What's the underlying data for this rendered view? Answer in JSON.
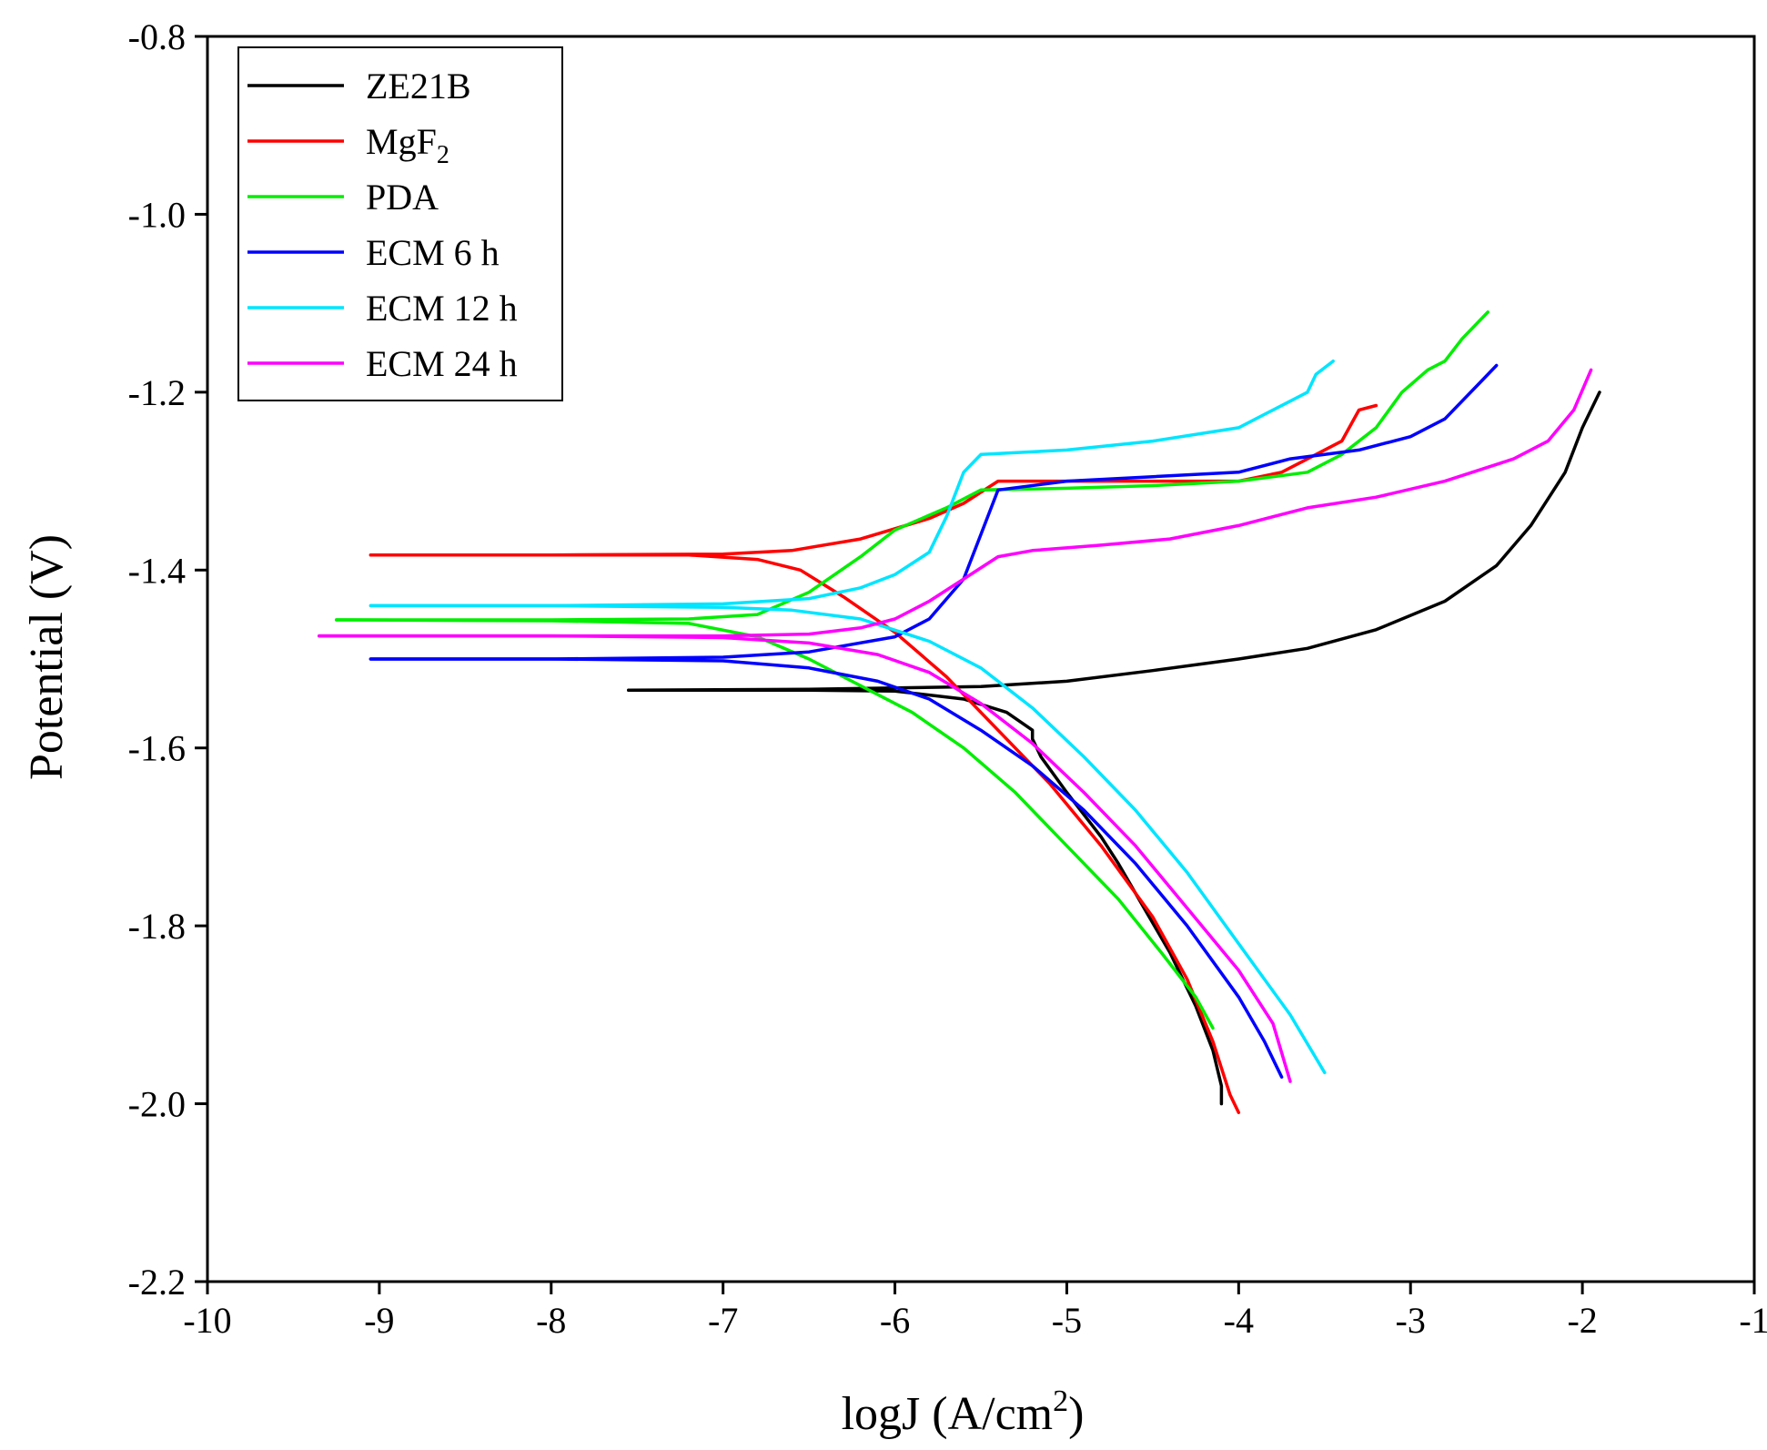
{
  "chart_data": {
    "type": "line",
    "title": "",
    "xlabel": "logJ (A/cm",
    "xlabel_sup": "2",
    "xlabel_tail": ")",
    "ylabel": "Potential (V)",
    "xlim": [
      -10,
      -1
    ],
    "ylim": [
      -2.2,
      -0.8
    ],
    "xticks": [
      -10,
      -9,
      -8,
      -7,
      -6,
      -5,
      -4,
      -3,
      -2,
      -1
    ],
    "xtick_labels": [
      "-10",
      "-9",
      "-8",
      "-7",
      "-6",
      "-5",
      "-4",
      "-3",
      "-2",
      "-1"
    ],
    "yticks": [
      -0.8,
      -1.0,
      -1.2,
      -1.4,
      -1.6,
      -1.8,
      -2.0,
      -2.2
    ],
    "ytick_labels": [
      "-0.8",
      "-1.0",
      "-1.2",
      "-1.4",
      "-1.6",
      "-1.8",
      "-2.0",
      "-2.2"
    ],
    "grid": false,
    "legend_position": "top-left",
    "series": [
      {
        "name": "ZE21B",
        "name_sub": "",
        "color": "#000000",
        "anodic": [
          [
            -7.55,
            -1.535
          ],
          [
            -6.5,
            -1.534
          ],
          [
            -5.5,
            -1.531
          ],
          [
            -5.0,
            -1.525
          ],
          [
            -4.5,
            -1.513
          ],
          [
            -4.0,
            -1.5
          ],
          [
            -3.6,
            -1.488
          ],
          [
            -3.2,
            -1.467
          ],
          [
            -2.8,
            -1.435
          ],
          [
            -2.5,
            -1.395
          ],
          [
            -2.3,
            -1.35
          ],
          [
            -2.1,
            -1.29
          ],
          [
            -2.0,
            -1.24
          ],
          [
            -1.9,
            -1.2
          ]
        ],
        "cathodic": [
          [
            -7.55,
            -1.535
          ],
          [
            -6.5,
            -1.535
          ],
          [
            -6.0,
            -1.536
          ],
          [
            -5.6,
            -1.545
          ],
          [
            -5.35,
            -1.56
          ],
          [
            -5.2,
            -1.58
          ],
          [
            -5.2,
            -1.59
          ],
          [
            -5.15,
            -1.61
          ],
          [
            -5.0,
            -1.65
          ],
          [
            -4.8,
            -1.7
          ],
          [
            -4.7,
            -1.73
          ],
          [
            -4.55,
            -1.78
          ],
          [
            -4.4,
            -1.83
          ],
          [
            -4.25,
            -1.89
          ],
          [
            -4.15,
            -1.94
          ],
          [
            -4.1,
            -1.98
          ],
          [
            -4.1,
            -2.0
          ]
        ]
      },
      {
        "name": "MgF",
        "name_sub": "2",
        "color": "#ff0000",
        "anodic": [
          [
            -9.05,
            -1.383
          ],
          [
            -8.0,
            -1.383
          ],
          [
            -7.0,
            -1.382
          ],
          [
            -6.6,
            -1.378
          ],
          [
            -6.2,
            -1.365
          ],
          [
            -5.8,
            -1.342
          ],
          [
            -5.6,
            -1.325
          ],
          [
            -5.4,
            -1.3
          ],
          [
            -5.0,
            -1.3
          ],
          [
            -4.5,
            -1.3
          ],
          [
            -4.0,
            -1.3
          ],
          [
            -3.75,
            -1.29
          ],
          [
            -3.55,
            -1.27
          ],
          [
            -3.4,
            -1.255
          ],
          [
            -3.3,
            -1.22
          ],
          [
            -3.2,
            -1.215
          ]
        ],
        "cathodic": [
          [
            -9.05,
            -1.383
          ],
          [
            -8.0,
            -1.383
          ],
          [
            -7.2,
            -1.383
          ],
          [
            -6.8,
            -1.388
          ],
          [
            -6.55,
            -1.4
          ],
          [
            -6.3,
            -1.43
          ],
          [
            -6.0,
            -1.47
          ],
          [
            -5.7,
            -1.52
          ],
          [
            -5.4,
            -1.58
          ],
          [
            -5.1,
            -1.64
          ],
          [
            -4.8,
            -1.71
          ],
          [
            -4.5,
            -1.79
          ],
          [
            -4.3,
            -1.86
          ],
          [
            -4.15,
            -1.93
          ],
          [
            -4.05,
            -1.99
          ],
          [
            -4.0,
            -2.01
          ]
        ]
      },
      {
        "name": "PDA",
        "name_sub": "",
        "color": "#00ee00",
        "anodic": [
          [
            -9.25,
            -1.456
          ],
          [
            -8.0,
            -1.456
          ],
          [
            -7.2,
            -1.455
          ],
          [
            -6.8,
            -1.45
          ],
          [
            -6.5,
            -1.425
          ],
          [
            -6.2,
            -1.385
          ],
          [
            -6.0,
            -1.355
          ],
          [
            -5.7,
            -1.33
          ],
          [
            -5.5,
            -1.31
          ],
          [
            -5.0,
            -1.308
          ],
          [
            -4.5,
            -1.305
          ],
          [
            -4.0,
            -1.3
          ],
          [
            -3.6,
            -1.29
          ],
          [
            -3.4,
            -1.27
          ],
          [
            -3.2,
            -1.24
          ],
          [
            -3.05,
            -1.2
          ],
          [
            -2.9,
            -1.175
          ],
          [
            -2.8,
            -1.165
          ],
          [
            -2.7,
            -1.14
          ],
          [
            -2.55,
            -1.11
          ]
        ],
        "cathodic": [
          [
            -9.25,
            -1.456
          ],
          [
            -8.0,
            -1.457
          ],
          [
            -7.2,
            -1.46
          ],
          [
            -6.8,
            -1.475
          ],
          [
            -6.5,
            -1.5
          ],
          [
            -6.2,
            -1.53
          ],
          [
            -5.9,
            -1.56
          ],
          [
            -5.6,
            -1.6
          ],
          [
            -5.3,
            -1.65
          ],
          [
            -5.0,
            -1.71
          ],
          [
            -4.7,
            -1.77
          ],
          [
            -4.45,
            -1.83
          ],
          [
            -4.25,
            -1.88
          ],
          [
            -4.15,
            -1.915
          ]
        ]
      },
      {
        "name": "ECM 6 h",
        "name_sub": "",
        "color": "#0000ff",
        "anodic": [
          [
            -9.05,
            -1.5
          ],
          [
            -8.0,
            -1.5
          ],
          [
            -7.0,
            -1.498
          ],
          [
            -6.5,
            -1.492
          ],
          [
            -6.0,
            -1.475
          ],
          [
            -5.8,
            -1.455
          ],
          [
            -5.6,
            -1.41
          ],
          [
            -5.5,
            -1.36
          ],
          [
            -5.4,
            -1.31
          ],
          [
            -5.0,
            -1.3
          ],
          [
            -4.5,
            -1.295
          ],
          [
            -4.0,
            -1.29
          ],
          [
            -3.7,
            -1.275
          ],
          [
            -3.3,
            -1.265
          ],
          [
            -3.0,
            -1.25
          ],
          [
            -2.8,
            -1.23
          ],
          [
            -2.6,
            -1.19
          ],
          [
            -2.5,
            -1.17
          ]
        ],
        "cathodic": [
          [
            -9.05,
            -1.5
          ],
          [
            -8.0,
            -1.5
          ],
          [
            -7.0,
            -1.502
          ],
          [
            -6.5,
            -1.51
          ],
          [
            -6.1,
            -1.525
          ],
          [
            -5.8,
            -1.545
          ],
          [
            -5.5,
            -1.58
          ],
          [
            -5.2,
            -1.62
          ],
          [
            -4.9,
            -1.67
          ],
          [
            -4.6,
            -1.73
          ],
          [
            -4.3,
            -1.8
          ],
          [
            -4.0,
            -1.88
          ],
          [
            -3.85,
            -1.93
          ],
          [
            -3.75,
            -1.97
          ]
        ]
      },
      {
        "name": "ECM 12 h",
        "name_sub": "",
        "color": "#00e5ff",
        "anodic": [
          [
            -9.05,
            -1.44
          ],
          [
            -8.0,
            -1.44
          ],
          [
            -7.0,
            -1.438
          ],
          [
            -6.5,
            -1.432
          ],
          [
            -6.2,
            -1.42
          ],
          [
            -6.0,
            -1.405
          ],
          [
            -5.8,
            -1.38
          ],
          [
            -5.7,
            -1.34
          ],
          [
            -5.6,
            -1.29
          ],
          [
            -5.5,
            -1.27
          ],
          [
            -5.0,
            -1.265
          ],
          [
            -4.5,
            -1.255
          ],
          [
            -4.0,
            -1.24
          ],
          [
            -3.8,
            -1.22
          ],
          [
            -3.6,
            -1.2
          ],
          [
            -3.55,
            -1.18
          ],
          [
            -3.45,
            -1.165
          ]
        ],
        "cathodic": [
          [
            -9.05,
            -1.44
          ],
          [
            -8.0,
            -1.44
          ],
          [
            -7.0,
            -1.442
          ],
          [
            -6.6,
            -1.445
          ],
          [
            -6.2,
            -1.455
          ],
          [
            -5.8,
            -1.48
          ],
          [
            -5.5,
            -1.51
          ],
          [
            -5.2,
            -1.555
          ],
          [
            -4.9,
            -1.61
          ],
          [
            -4.6,
            -1.67
          ],
          [
            -4.3,
            -1.74
          ],
          [
            -4.0,
            -1.82
          ],
          [
            -3.7,
            -1.9
          ],
          [
            -3.5,
            -1.965
          ]
        ]
      },
      {
        "name": "ECM 24 h",
        "name_sub": "",
        "color": "#ff00ff",
        "anodic": [
          [
            -9.35,
            -1.474
          ],
          [
            -8.0,
            -1.474
          ],
          [
            -7.0,
            -1.474
          ],
          [
            -6.5,
            -1.472
          ],
          [
            -6.2,
            -1.465
          ],
          [
            -6.0,
            -1.455
          ],
          [
            -5.8,
            -1.435
          ],
          [
            -5.6,
            -1.41
          ],
          [
            -5.4,
            -1.385
          ],
          [
            -5.2,
            -1.378
          ],
          [
            -4.8,
            -1.372
          ],
          [
            -4.4,
            -1.365
          ],
          [
            -4.0,
            -1.35
          ],
          [
            -3.6,
            -1.33
          ],
          [
            -3.2,
            -1.318
          ],
          [
            -2.8,
            -1.3
          ],
          [
            -2.4,
            -1.275
          ],
          [
            -2.2,
            -1.255
          ],
          [
            -2.05,
            -1.22
          ],
          [
            -1.95,
            -1.175
          ]
        ],
        "cathodic": [
          [
            -9.35,
            -1.474
          ],
          [
            -8.0,
            -1.474
          ],
          [
            -7.0,
            -1.476
          ],
          [
            -6.5,
            -1.482
          ],
          [
            -6.1,
            -1.495
          ],
          [
            -5.8,
            -1.515
          ],
          [
            -5.5,
            -1.55
          ],
          [
            -5.2,
            -1.595
          ],
          [
            -4.9,
            -1.65
          ],
          [
            -4.6,
            -1.71
          ],
          [
            -4.3,
            -1.78
          ],
          [
            -4.0,
            -1.85
          ],
          [
            -3.8,
            -1.91
          ],
          [
            -3.7,
            -1.975
          ]
        ]
      }
    ]
  }
}
